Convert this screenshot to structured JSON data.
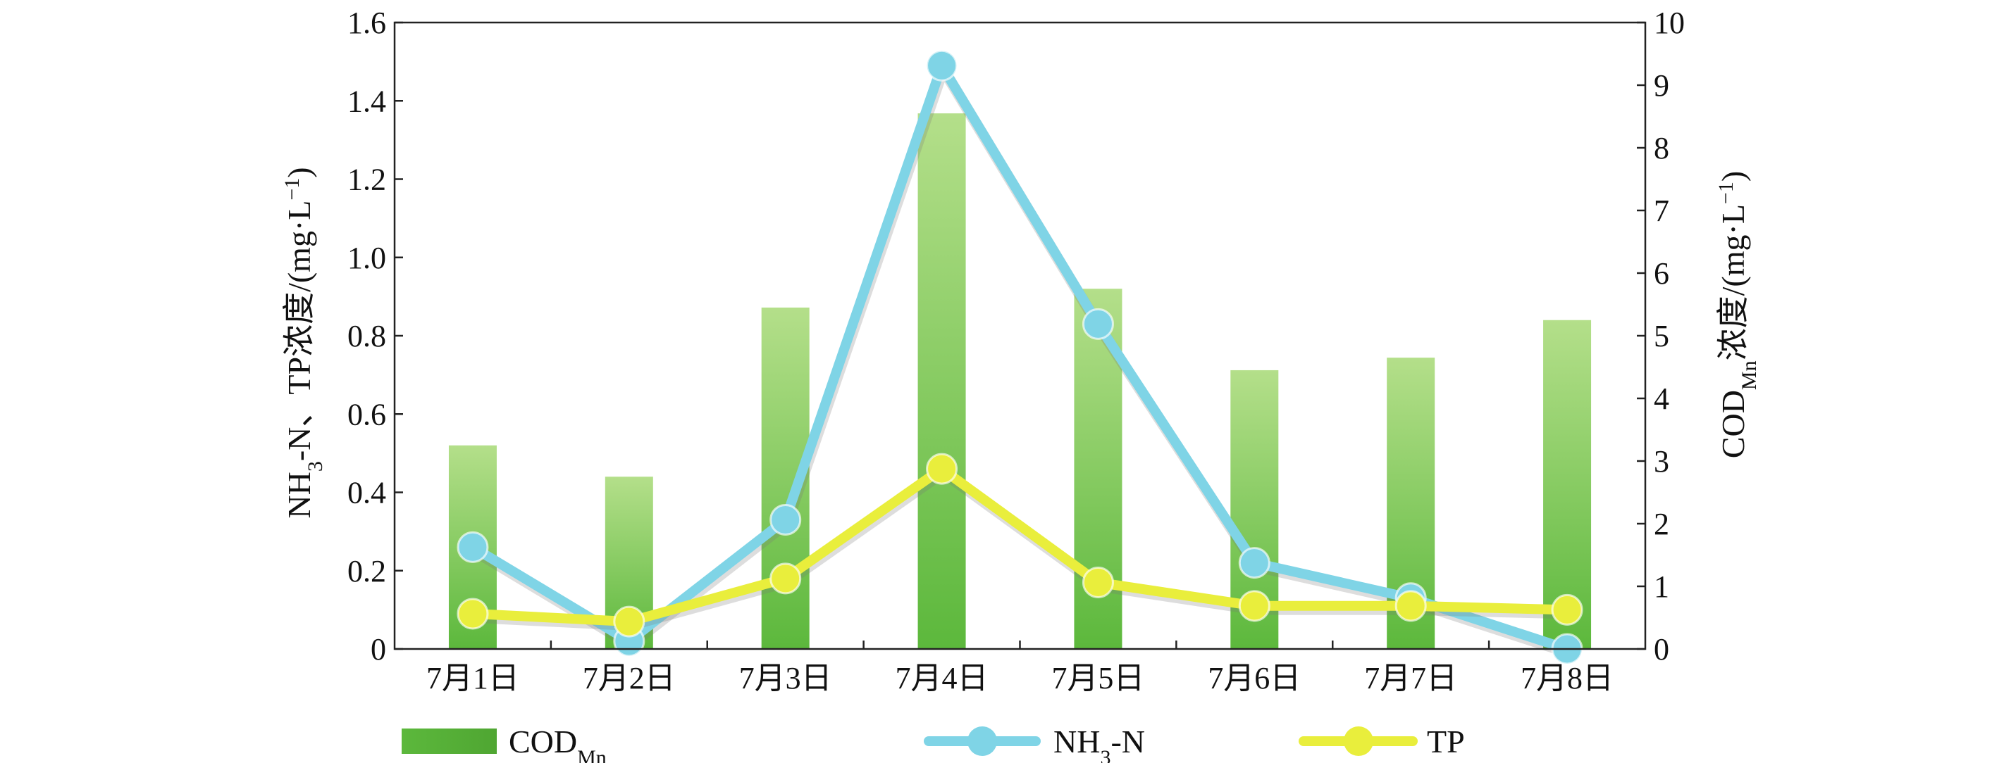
{
  "chart_data": {
    "type": "bar",
    "categories": [
      "7月1日",
      "7月2日",
      "7月3日",
      "7月4日",
      "7月5日",
      "7月6日",
      "7月7日",
      "7月8日"
    ],
    "series": [
      {
        "name": "COD",
        "name_sub": "Mn",
        "type": "bar",
        "axis": "right",
        "values": [
          3.25,
          2.75,
          5.45,
          8.55,
          5.75,
          4.45,
          4.65,
          5.25
        ]
      },
      {
        "name": "NH",
        "name_sub": "3",
        "name_tail": "-N",
        "type": "line",
        "axis": "left",
        "values": [
          0.26,
          0.02,
          0.33,
          1.49,
          0.83,
          0.22,
          0.13,
          0.0
        ]
      },
      {
        "name": "TP",
        "type": "line",
        "axis": "left",
        "values": [
          0.09,
          0.07,
          0.18,
          0.46,
          0.17,
          0.11,
          0.11,
          0.1
        ]
      }
    ],
    "y_left": {
      "label_parts": [
        "NH",
        "3",
        "-N、TP浓度/(mg·L",
        "−1",
        ")"
      ],
      "min": 0,
      "max": 1.6,
      "ticks": [
        "0",
        "0.2",
        "0.4",
        "0.6",
        "0.8",
        "1.0",
        "1.2",
        "1.4",
        "1.6"
      ]
    },
    "y_right": {
      "label_parts": [
        "COD",
        "Mn",
        "浓度/(mg·L",
        "−1",
        ")"
      ],
      "min": 0,
      "max": 10,
      "ticks": [
        "0",
        "1",
        "2",
        "3",
        "4",
        "5",
        "6",
        "7",
        "8",
        "9",
        "10"
      ]
    },
    "legend_position": "bottom",
    "grid": false,
    "colors": {
      "bar_top": "#b4df8a",
      "bar_bottom": "#5cb83c",
      "nh3": "#7fd4e6",
      "tp": "#e9ee3c"
    }
  }
}
